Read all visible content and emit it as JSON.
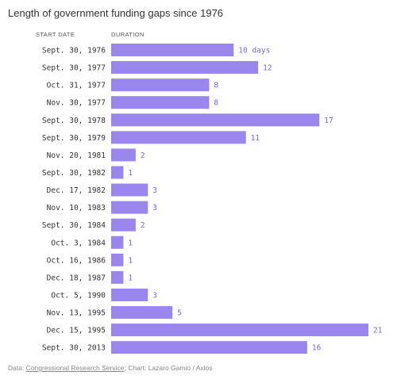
{
  "title": "Length of government funding gaps since 1976",
  "column_headers": {
    "start": "START DATE",
    "duration": "DURATION"
  },
  "footer": {
    "prefix": "Data: ",
    "source": "Congressional Research Service",
    "suffix": "; Chart: Lazaro Gamio / Axios"
  },
  "colors": {
    "bar": "#9b86ee",
    "label": "#7b68d8",
    "date": "#333333"
  },
  "chart_data": {
    "type": "bar",
    "orientation": "horizontal",
    "categories": [
      "Sept. 30, 1976",
      "Sept. 30, 1977",
      "Oct. 31, 1977",
      "Nov. 30, 1977",
      "Sept. 30, 1978",
      "Sept. 30, 1979",
      "Nov. 20, 1981",
      "Sept. 30, 1982",
      "Dec. 17, 1982",
      "Nov. 10, 1983",
      "Sept. 30, 1984",
      "Oct. 3, 1984",
      "Oct. 16, 1986",
      "Dec. 18, 1987",
      "Oct. 5, 1990",
      "Nov. 13, 1995",
      "Dec. 15, 1995",
      "Sept. 30, 2013"
    ],
    "values": [
      10,
      12,
      8,
      8,
      17,
      11,
      2,
      1,
      3,
      3,
      2,
      1,
      1,
      1,
      3,
      5,
      21,
      16
    ],
    "value_labels": [
      "10 days",
      "12",
      "8",
      "8",
      "17",
      "11",
      "2",
      "1",
      "3",
      "3",
      "2",
      "1",
      "1",
      "1",
      "3",
      "5",
      "21",
      "16"
    ],
    "xlim": [
      0,
      21
    ]
  }
}
